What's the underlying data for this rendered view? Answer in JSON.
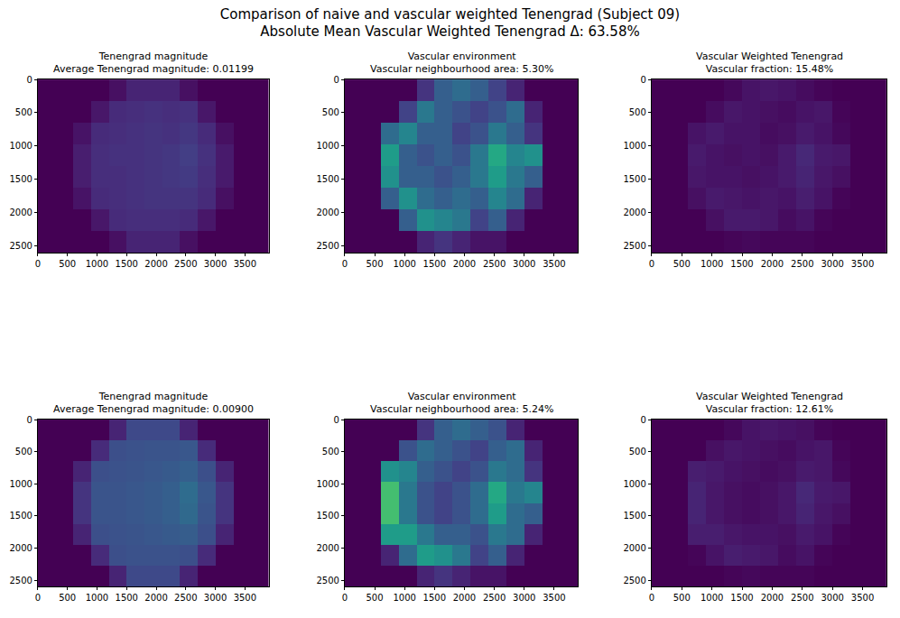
{
  "title": "Comparison of naive and vascular weighted Tenengrad (Subject 09)",
  "subtitle": "Absolute Mean Vascular Weighted Tenengrad Δ: 63.58%",
  "chart_data": [
    {
      "type": "heatmap",
      "title": "Tenengrad magnitude",
      "subtitle": "Average Tenengrad magnitude: 0.01199",
      "color": "Viridis",
      "x": [
        150,
        450,
        750,
        1050,
        1350,
        1650,
        1950,
        2250,
        2550,
        2850,
        3150,
        3450,
        3750
      ],
      "y": [
        162.5,
        487.5,
        812.5,
        1137.5,
        1462.5,
        1787.5,
        2112.5,
        2437.5
      ],
      "xlim": [
        0,
        3900
      ],
      "ylim": [
        2600,
        0
      ],
      "xticks": [
        0,
        500,
        1000,
        1500,
        2000,
        2500,
        3000,
        3500
      ],
      "yticks": [
        0,
        500,
        1000,
        1500,
        2000,
        2500
      ],
      "zlim": [
        0,
        1
      ],
      "cells": [
        [
          0,
          0,
          0,
          0,
          0.04,
          0.1,
          0.1,
          0.1,
          0.04,
          0,
          0,
          0,
          0
        ],
        [
          0,
          0,
          0,
          0.06,
          0.12,
          0.13,
          0.14,
          0.13,
          0.14,
          0.06,
          0,
          0,
          0
        ],
        [
          0,
          0,
          0.05,
          0.12,
          0.13,
          0.14,
          0.15,
          0.14,
          0.16,
          0.12,
          0.04,
          0,
          0
        ],
        [
          0,
          0,
          0.08,
          0.13,
          0.14,
          0.14,
          0.15,
          0.16,
          0.18,
          0.14,
          0.07,
          0,
          0
        ],
        [
          0,
          0,
          0.08,
          0.13,
          0.13,
          0.14,
          0.15,
          0.16,
          0.17,
          0.13,
          0.07,
          0,
          0
        ],
        [
          0,
          0,
          0.05,
          0.12,
          0.13,
          0.14,
          0.15,
          0.15,
          0.15,
          0.12,
          0.04,
          0,
          0
        ],
        [
          0,
          0,
          0,
          0.06,
          0.12,
          0.13,
          0.13,
          0.13,
          0.12,
          0.06,
          0,
          0,
          0
        ],
        [
          0,
          0,
          0,
          0,
          0.04,
          0.1,
          0.1,
          0.1,
          0.04,
          0,
          0,
          0,
          0
        ]
      ]
    },
    {
      "type": "heatmap",
      "title": "Vascular environment",
      "subtitle": "Vascular neighbourhood area: 5.30%",
      "color": "Viridis",
      "x": [
        150,
        450,
        750,
        1050,
        1350,
        1650,
        1950,
        2250,
        2550,
        2850,
        3150,
        3450,
        3750
      ],
      "y": [
        162.5,
        487.5,
        812.5,
        1137.5,
        1462.5,
        1787.5,
        2112.5,
        2437.5
      ],
      "xlim": [
        0,
        3900
      ],
      "ylim": [
        2600,
        0
      ],
      "xticks": [
        0,
        500,
        1000,
        1500,
        2000,
        2500,
        3000,
        3500
      ],
      "yticks": [
        0,
        500,
        1000,
        1500,
        2000,
        2500
      ],
      "zlim": [
        0,
        1
      ],
      "cells": [
        [
          0,
          0,
          0,
          0,
          0.15,
          0.3,
          0.35,
          0.3,
          0.2,
          0.1,
          0,
          0,
          0
        ],
        [
          0,
          0,
          0,
          0.2,
          0.4,
          0.3,
          0.25,
          0.2,
          0.25,
          0.35,
          0.1,
          0,
          0
        ],
        [
          0,
          0,
          0.35,
          0.45,
          0.3,
          0.3,
          0.2,
          0.25,
          0.4,
          0.3,
          0.15,
          0,
          0
        ],
        [
          0,
          0,
          0.55,
          0.3,
          0.25,
          0.3,
          0.25,
          0.4,
          0.6,
          0.45,
          0.5,
          0,
          0
        ],
        [
          0,
          0,
          0.5,
          0.3,
          0.3,
          0.25,
          0.3,
          0.4,
          0.55,
          0.4,
          0.3,
          0,
          0
        ],
        [
          0,
          0,
          0.3,
          0.5,
          0.35,
          0.3,
          0.35,
          0.3,
          0.45,
          0.35,
          0.1,
          0,
          0
        ],
        [
          0,
          0,
          0,
          0.3,
          0.5,
          0.45,
          0.4,
          0.2,
          0.3,
          0.1,
          0,
          0,
          0
        ],
        [
          0,
          0,
          0,
          0,
          0.1,
          0.15,
          0.1,
          0.05,
          0.05,
          0,
          0,
          0,
          0
        ]
      ]
    },
    {
      "type": "heatmap",
      "title": "Vascular Weighted Tenengrad",
      "subtitle": "Vascular fraction: 15.48%",
      "color": "Viridis",
      "x": [
        150,
        450,
        750,
        1050,
        1350,
        1650,
        1950,
        2250,
        2550,
        2850,
        3150,
        3450,
        3750
      ],
      "y": [
        162.5,
        487.5,
        812.5,
        1137.5,
        1462.5,
        1787.5,
        2112.5,
        2437.5
      ],
      "xlim": [
        0,
        3900
      ],
      "ylim": [
        2600,
        0
      ],
      "xticks": [
        0,
        500,
        1000,
        1500,
        2000,
        2500,
        3000,
        3500
      ],
      "yticks": [
        0,
        500,
        1000,
        1500,
        2000,
        2500
      ],
      "zlim": [
        0,
        1
      ],
      "cells": [
        [
          0,
          0,
          0,
          0,
          0.02,
          0.05,
          0.06,
          0.05,
          0.03,
          0.01,
          0,
          0,
          0
        ],
        [
          0,
          0,
          0,
          0.03,
          0.06,
          0.05,
          0.04,
          0.03,
          0.05,
          0.06,
          0.01,
          0,
          0
        ],
        [
          0,
          0,
          0.05,
          0.07,
          0.05,
          0.05,
          0.03,
          0.04,
          0.07,
          0.05,
          0.02,
          0,
          0
        ],
        [
          0,
          0,
          0.07,
          0.05,
          0.04,
          0.05,
          0.04,
          0.07,
          0.11,
          0.07,
          0.06,
          0,
          0
        ],
        [
          0,
          0,
          0.06,
          0.05,
          0.05,
          0.04,
          0.05,
          0.07,
          0.1,
          0.06,
          0.04,
          0,
          0
        ],
        [
          0,
          0,
          0.04,
          0.07,
          0.06,
          0.05,
          0.06,
          0.05,
          0.08,
          0.05,
          0.01,
          0,
          0
        ],
        [
          0,
          0,
          0,
          0.04,
          0.07,
          0.07,
          0.06,
          0.03,
          0.05,
          0.01,
          0,
          0,
          0
        ],
        [
          0,
          0,
          0,
          0,
          0.01,
          0.02,
          0.01,
          0.01,
          0.01,
          0,
          0,
          0,
          0
        ]
      ]
    },
    {
      "type": "heatmap",
      "title": "Tenengrad magnitude",
      "subtitle": "Average Tenengrad magnitude: 0.00900",
      "color": "Viridis",
      "x": [
        150,
        450,
        750,
        1050,
        1350,
        1650,
        1950,
        2250,
        2550,
        2850,
        3150,
        3450,
        3750
      ],
      "y": [
        162.5,
        487.5,
        812.5,
        1137.5,
        1462.5,
        1787.5,
        2112.5,
        2437.5
      ],
      "xlim": [
        0,
        3900
      ],
      "ylim": [
        2600,
        0
      ],
      "xticks": [
        0,
        500,
        1000,
        1500,
        2000,
        2500,
        3000,
        3500
      ],
      "yticks": [
        0,
        500,
        1000,
        1500,
        2000,
        2500
      ],
      "zlim": [
        0,
        1
      ],
      "cells": [
        [
          0,
          0,
          0,
          0,
          0.1,
          0.22,
          0.22,
          0.22,
          0.1,
          0,
          0,
          0,
          0
        ],
        [
          0,
          0,
          0,
          0.12,
          0.24,
          0.25,
          0.26,
          0.26,
          0.27,
          0.12,
          0,
          0,
          0
        ],
        [
          0,
          0,
          0.1,
          0.24,
          0.25,
          0.26,
          0.27,
          0.28,
          0.3,
          0.24,
          0.1,
          0,
          0
        ],
        [
          0,
          0,
          0.15,
          0.26,
          0.26,
          0.27,
          0.28,
          0.3,
          0.35,
          0.27,
          0.15,
          0,
          0
        ],
        [
          0,
          0,
          0.15,
          0.26,
          0.26,
          0.27,
          0.28,
          0.3,
          0.34,
          0.26,
          0.15,
          0,
          0
        ],
        [
          0,
          0,
          0.1,
          0.24,
          0.25,
          0.26,
          0.27,
          0.28,
          0.29,
          0.24,
          0.1,
          0,
          0
        ],
        [
          0,
          0,
          0,
          0.12,
          0.24,
          0.25,
          0.25,
          0.25,
          0.24,
          0.12,
          0,
          0,
          0
        ],
        [
          0,
          0,
          0,
          0,
          0.1,
          0.22,
          0.22,
          0.22,
          0.1,
          0,
          0,
          0,
          0
        ]
      ]
    },
    {
      "type": "heatmap",
      "title": "Vascular environment",
      "subtitle": "Vascular neighbourhood area: 5.24%",
      "color": "Viridis",
      "x": [
        150,
        450,
        750,
        1050,
        1350,
        1650,
        1950,
        2250,
        2550,
        2850,
        3150,
        3450,
        3750
      ],
      "y": [
        162.5,
        487.5,
        812.5,
        1137.5,
        1462.5,
        1787.5,
        2112.5,
        2437.5
      ],
      "xlim": [
        0,
        3900
      ],
      "ylim": [
        2600,
        0
      ],
      "xticks": [
        0,
        500,
        1000,
        1500,
        2000,
        2500,
        3000,
        3500
      ],
      "yticks": [
        0,
        500,
        1000,
        1500,
        2000,
        2500
      ],
      "zlim": [
        0,
        1
      ],
      "cells": [
        [
          0,
          0,
          0,
          0,
          0.15,
          0.3,
          0.35,
          0.3,
          0.25,
          0.1,
          0,
          0,
          0
        ],
        [
          0,
          0,
          0,
          0.25,
          0.35,
          0.3,
          0.25,
          0.2,
          0.3,
          0.35,
          0.1,
          0,
          0
        ],
        [
          0,
          0,
          0.5,
          0.45,
          0.3,
          0.25,
          0.2,
          0.25,
          0.4,
          0.35,
          0.15,
          0,
          0
        ],
        [
          0,
          0,
          0.7,
          0.4,
          0.25,
          0.2,
          0.25,
          0.35,
          0.6,
          0.4,
          0.45,
          0,
          0
        ],
        [
          0,
          0,
          0.7,
          0.4,
          0.25,
          0.2,
          0.25,
          0.35,
          0.55,
          0.35,
          0.3,
          0,
          0
        ],
        [
          0,
          0,
          0.55,
          0.55,
          0.4,
          0.3,
          0.3,
          0.25,
          0.4,
          0.35,
          0.1,
          0,
          0
        ],
        [
          0,
          0,
          0.1,
          0.35,
          0.55,
          0.5,
          0.4,
          0.2,
          0.3,
          0.1,
          0,
          0,
          0
        ],
        [
          0,
          0,
          0,
          0,
          0.1,
          0.15,
          0.1,
          0.05,
          0.05,
          0,
          0,
          0,
          0
        ]
      ]
    },
    {
      "type": "heatmap",
      "title": "Vascular Weighted Tenengrad",
      "subtitle": "Vascular fraction: 12.61%",
      "color": "Viridis",
      "x": [
        150,
        450,
        750,
        1050,
        1350,
        1650,
        1950,
        2250,
        2550,
        2850,
        3150,
        3450,
        3750
      ],
      "y": [
        162.5,
        487.5,
        812.5,
        1137.5,
        1462.5,
        1787.5,
        2112.5,
        2437.5
      ],
      "xlim": [
        0,
        3900
      ],
      "ylim": [
        2600,
        0
      ],
      "xticks": [
        0,
        500,
        1000,
        1500,
        2000,
        2500,
        3000,
        3500
      ],
      "yticks": [
        0,
        500,
        1000,
        1500,
        2000,
        2500
      ],
      "zlim": [
        0,
        1
      ],
      "cells": [
        [
          0,
          0,
          0,
          0,
          0.02,
          0.05,
          0.06,
          0.05,
          0.04,
          0.01,
          0,
          0,
          0
        ],
        [
          0,
          0,
          0,
          0.04,
          0.06,
          0.05,
          0.04,
          0.03,
          0.05,
          0.06,
          0.01,
          0,
          0
        ],
        [
          0,
          0,
          0.08,
          0.07,
          0.05,
          0.04,
          0.03,
          0.04,
          0.07,
          0.06,
          0.02,
          0,
          0
        ],
        [
          0,
          0,
          0.1,
          0.06,
          0.04,
          0.03,
          0.04,
          0.06,
          0.11,
          0.07,
          0.06,
          0,
          0
        ],
        [
          0,
          0,
          0.1,
          0.06,
          0.04,
          0.03,
          0.04,
          0.06,
          0.1,
          0.06,
          0.04,
          0,
          0
        ],
        [
          0,
          0,
          0.08,
          0.08,
          0.06,
          0.05,
          0.05,
          0.04,
          0.07,
          0.05,
          0.01,
          0,
          0
        ],
        [
          0,
          0,
          0.01,
          0.05,
          0.08,
          0.07,
          0.06,
          0.03,
          0.05,
          0.01,
          0,
          0,
          0
        ],
        [
          0,
          0,
          0,
          0,
          0.01,
          0.02,
          0.01,
          0.01,
          0.01,
          0,
          0,
          0,
          0
        ]
      ]
    }
  ]
}
